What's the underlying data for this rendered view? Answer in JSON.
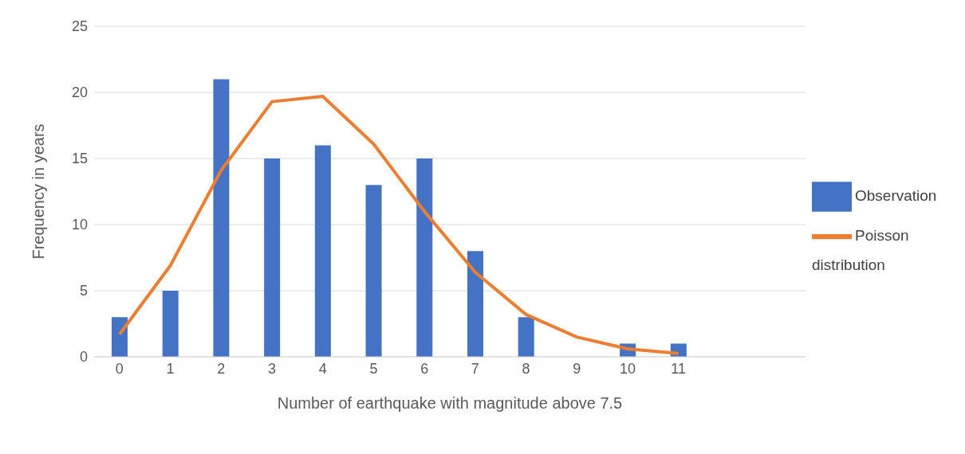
{
  "chart_data": {
    "type": "bar",
    "xlabel": "Number of earthquake with magnitude above 7.5",
    "ylabel": "Frequency in years",
    "categories": [
      "0",
      "1",
      "2",
      "3",
      "4",
      "5",
      "6",
      "7",
      "8",
      "9",
      "10",
      "11",
      null,
      null
    ],
    "series": [
      {
        "name": "Observation",
        "color": "#4472c4",
        "values": [
          3,
          5,
          21,
          15,
          16,
          13,
          15,
          8,
          3,
          0,
          1,
          1,
          null,
          null
        ]
      },
      {
        "name": "Poisson distribution",
        "type": "line",
        "color": "#ed7d31",
        "values": [
          1.7,
          6.9,
          14.1,
          19.3,
          19.7,
          16.1,
          11.0,
          6.4,
          3.2,
          1.5,
          0.6,
          0.25,
          null,
          null
        ]
      }
    ],
    "ylim": [
      0,
      25
    ],
    "yticks": [
      0,
      5,
      10,
      15,
      20,
      25
    ],
    "grid": "y",
    "legend": "right",
    "marker": "none",
    "line_style": "solid"
  }
}
